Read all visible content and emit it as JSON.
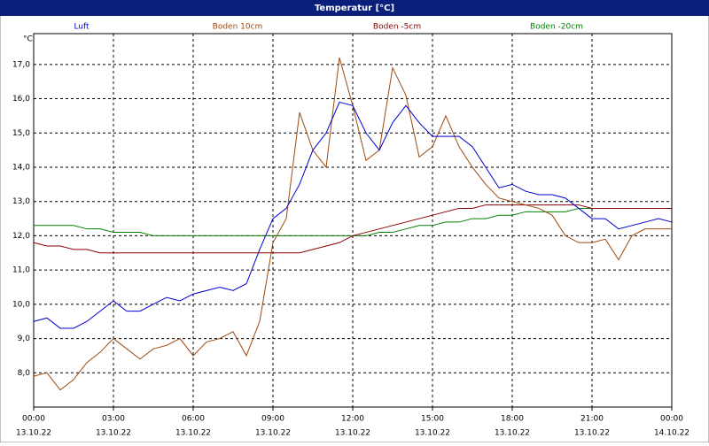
{
  "chart_data": {
    "type": "line",
    "title": "Temperatur [°C]",
    "y_unit": "°C",
    "x": [
      0,
      0.5,
      1,
      1.5,
      2,
      2.5,
      3,
      3.5,
      4,
      4.5,
      5,
      5.5,
      6,
      6.5,
      7,
      7.5,
      8,
      8.5,
      9,
      9.5,
      10,
      10.5,
      11,
      11.5,
      12,
      12.5,
      13,
      13.5,
      14,
      14.5,
      15,
      15.5,
      16,
      16.5,
      17,
      17.5,
      18,
      18.5,
      19,
      19.5,
      20,
      20.5,
      21,
      21.5,
      22,
      22.5,
      23,
      23.5,
      24
    ],
    "xlim": [
      0,
      24
    ],
    "xticks": [
      {
        "value": 0,
        "label": "00:00"
      },
      {
        "value": 3,
        "label": "03:00"
      },
      {
        "value": 6,
        "label": "06:00"
      },
      {
        "value": 9,
        "label": "09:00"
      },
      {
        "value": 12,
        "label": "12:00"
      },
      {
        "value": 15,
        "label": "15:00"
      },
      {
        "value": 18,
        "label": "18:00"
      },
      {
        "value": 21,
        "label": "21:00"
      },
      {
        "value": 24,
        "label": "00:00"
      }
    ],
    "xtick_dates": [
      "13.10.22",
      "13.10.22",
      "13.10.22",
      "13.10.22",
      "13.10.22",
      "13.10.22",
      "13.10.22",
      "13.10.22",
      "14.10.22"
    ],
    "ylim": [
      7.0,
      17.9
    ],
    "yticks": [
      {
        "value": 8,
        "label": "8,0"
      },
      {
        "value": 9,
        "label": "9,0"
      },
      {
        "value": 10,
        "label": "10,0"
      },
      {
        "value": 11,
        "label": "11,0"
      },
      {
        "value": 12,
        "label": "12,0"
      },
      {
        "value": 13,
        "label": "13,0"
      },
      {
        "value": 14,
        "label": "14,0"
      },
      {
        "value": 15,
        "label": "15,0"
      },
      {
        "value": 16,
        "label": "16,0"
      },
      {
        "value": 17,
        "label": "17,0"
      }
    ],
    "grid": true,
    "series": [
      {
        "name": "Luft",
        "color": "#0000cc",
        "values": [
          9.5,
          9.6,
          9.3,
          9.3,
          9.5,
          9.8,
          10.1,
          9.8,
          9.8,
          10.0,
          10.2,
          10.1,
          10.3,
          10.4,
          10.5,
          10.4,
          10.6,
          11.6,
          12.5,
          12.8,
          13.5,
          14.5,
          15.0,
          15.9,
          15.8,
          15.0,
          14.5,
          15.3,
          15.8,
          15.3,
          14.9,
          14.9,
          14.9,
          14.6,
          14.0,
          13.4,
          13.5,
          13.3,
          13.2,
          13.2,
          13.1,
          12.8,
          12.5,
          12.5,
          12.2,
          12.3,
          12.4,
          12.5,
          12.4
        ]
      },
      {
        "name": "Boden 10cm",
        "color": "#9c4a10",
        "values": [
          7.9,
          8.0,
          7.5,
          7.8,
          8.3,
          8.6,
          9.0,
          8.7,
          8.4,
          8.7,
          8.8,
          9.0,
          8.5,
          8.9,
          9.0,
          9.2,
          8.5,
          9.5,
          11.8,
          12.5,
          15.6,
          14.5,
          14.0,
          17.2,
          15.8,
          14.2,
          14.5,
          16.9,
          16.1,
          14.3,
          14.6,
          15.5,
          14.6,
          14.0,
          13.5,
          13.1,
          13.0,
          12.9,
          12.8,
          12.6,
          12.0,
          11.8,
          11.8,
          11.9,
          11.3,
          12.0,
          12.2,
          12.2,
          12.2
        ]
      },
      {
        "name": "Boden -5cm",
        "color": "#8b0000",
        "values": [
          11.8,
          11.7,
          11.7,
          11.6,
          11.6,
          11.5,
          11.5,
          11.5,
          11.5,
          11.5,
          11.5,
          11.5,
          11.5,
          11.5,
          11.5,
          11.5,
          11.5,
          11.5,
          11.5,
          11.5,
          11.5,
          11.6,
          11.7,
          11.8,
          12.0,
          12.1,
          12.2,
          12.3,
          12.4,
          12.5,
          12.6,
          12.7,
          12.8,
          12.8,
          12.9,
          12.9,
          12.9,
          12.9,
          12.9,
          12.9,
          12.9,
          12.9,
          12.8,
          12.8,
          12.8,
          12.8,
          12.8,
          12.8,
          12.8
        ]
      },
      {
        "name": "Boden -20cm",
        "color": "#008000",
        "values": [
          12.3,
          12.3,
          12.3,
          12.3,
          12.2,
          12.2,
          12.1,
          12.1,
          12.1,
          12.0,
          12.0,
          12.0,
          12.0,
          12.0,
          12.0,
          12.0,
          12.0,
          12.0,
          12.0,
          12.0,
          12.0,
          12.0,
          12.0,
          12.0,
          12.0,
          12.0,
          12.1,
          12.1,
          12.2,
          12.3,
          12.3,
          12.4,
          12.4,
          12.5,
          12.5,
          12.6,
          12.6,
          12.7,
          12.7,
          12.7,
          12.7,
          12.8,
          12.8,
          12.8,
          12.8,
          12.8,
          12.8,
          12.8,
          12.8
        ]
      }
    ]
  }
}
